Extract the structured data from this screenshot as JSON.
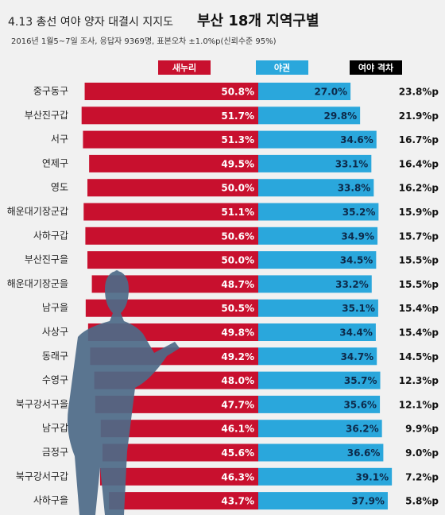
{
  "chart_data": {
    "type": "diverging-bar",
    "title": "4.13 총선 여야 양자 대결시 지지도",
    "title_emphasis": "부산 18개 지역구별",
    "subtitle": "2016년 1월5~7일 조사, 응답자 9369명, 표본오차 ±1.0%p(신뢰수준 95%)",
    "categories": [
      "중구동구",
      "부산진구갑",
      "서구",
      "연제구",
      "영도",
      "해운대기장군갑",
      "사하구갑",
      "부산진구을",
      "해운대기장군을",
      "남구을",
      "사상구",
      "동래구",
      "수영구",
      "북구강서구을",
      "남구갑",
      "금정구",
      "북구강서구갑",
      "사하구을"
    ],
    "series": [
      {
        "name": "새누리",
        "color": "#c8102e",
        "values": [
          50.8,
          51.7,
          51.3,
          49.5,
          50.0,
          51.1,
          50.6,
          50.0,
          48.7,
          50.5,
          49.8,
          49.2,
          48.0,
          47.7,
          46.1,
          45.6,
          46.3,
          43.7
        ],
        "value_labels": [
          "50.8%",
          "51.7%",
          "51.3%",
          "49.5%",
          "50.0%",
          "51.1%",
          "50.6%",
          "50.0%",
          "48.7%",
          "50.5%",
          "49.8%",
          "49.2%",
          "48.0%",
          "47.7%",
          "46.1%",
          "45.6%",
          "46.3%",
          "43.7%"
        ]
      },
      {
        "name": "야권",
        "color": "#2aa7dc",
        "values": [
          27.0,
          29.8,
          34.6,
          33.1,
          33.8,
          35.2,
          34.9,
          34.5,
          33.2,
          35.1,
          34.4,
          34.7,
          35.7,
          35.6,
          36.2,
          36.6,
          39.1,
          37.9
        ],
        "value_labels": [
          "27.0%",
          "29.8%",
          "34.6%",
          "33.1%",
          "33.8%",
          "35.2%",
          "34.9%",
          "34.5%",
          "33.2%",
          "35.1%",
          "34.4%",
          "34.7%",
          "35.7%",
          "35.6%",
          "36.2%",
          "36.6%",
          "39.1%",
          "37.9%"
        ]
      },
      {
        "name": "여야 격차",
        "color": "#000000",
        "values": [
          23.8,
          21.9,
          16.7,
          16.4,
          16.2,
          15.9,
          15.7,
          15.5,
          15.5,
          15.4,
          15.4,
          14.5,
          12.3,
          12.1,
          9.9,
          9.0,
          7.2,
          5.8
        ],
        "value_labels": [
          "23.8%p",
          "21.9%p",
          "16.7%p",
          "16.4%p",
          "16.2%p",
          "15.9%p",
          "15.7%p",
          "15.5%p",
          "15.5%p",
          "15.4%p",
          "15.4%p",
          "14.5%p",
          "12.3%p",
          "12.1%p",
          "9.9%p",
          "9.0%p",
          "7.2%p",
          "5.8%p"
        ]
      }
    ]
  }
}
